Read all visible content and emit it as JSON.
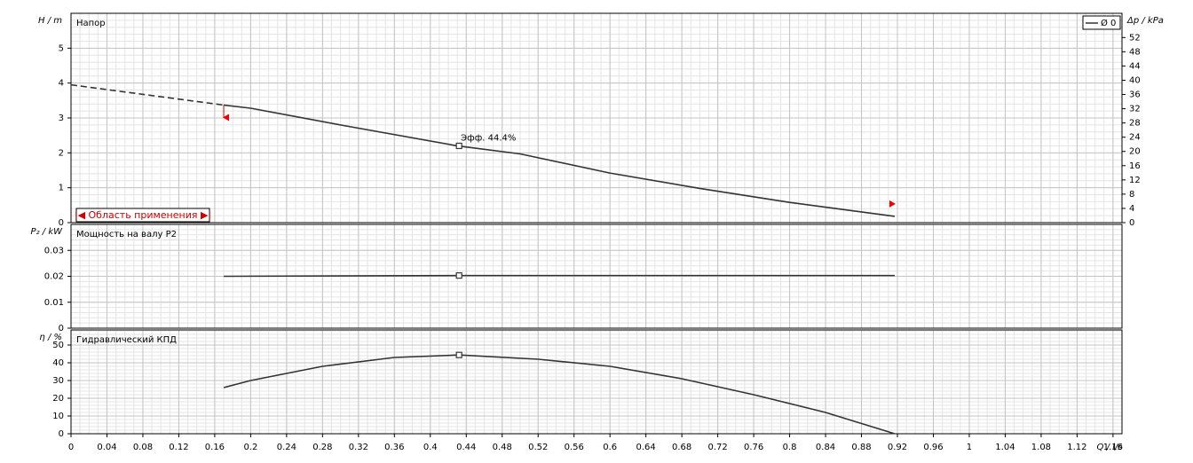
{
  "chart_data": [
    {
      "type": "line",
      "title": "Напор",
      "ylabel": "H / m",
      "y2label": "Δp / kPa",
      "ylim": [
        0,
        6
      ],
      "yticks": [
        0,
        1,
        2,
        3,
        4,
        5
      ],
      "y2lim": [
        0,
        58.8
      ],
      "y2ticks": [
        0,
        4,
        8,
        12,
        16,
        20,
        24,
        28,
        32,
        36,
        40,
        44,
        48,
        52
      ],
      "x": [
        0.17,
        0.2,
        0.3,
        0.43,
        0.5,
        0.6,
        0.7,
        0.8,
        0.917
      ],
      "series": [
        {
          "name": "Ø 0",
          "color": "#333333",
          "values": [
            3.37,
            3.28,
            2.8,
            2.2,
            1.97,
            1.42,
            0.98,
            0.58,
            0.18
          ]
        }
      ],
      "extrapolation": {
        "x": [
          0,
          0.17
        ],
        "values": [
          3.95,
          3.37
        ]
      },
      "marker": {
        "x": 0.432,
        "y": 2.2
      },
      "annotation": "Эфф. 44.4%",
      "operating_range": [
        0.17,
        0.917
      ],
      "range_label": "|◀ Область применения ▶|",
      "grid": true
    },
    {
      "type": "line",
      "title": "Мощность на валу P2",
      "ylabel": "P₂ / kW",
      "ylim": [
        0,
        0.04
      ],
      "yticks": [
        0,
        0.01,
        0.02,
        0.03
      ],
      "x": [
        0.17,
        0.43,
        0.917
      ],
      "series": [
        {
          "color": "#333333",
          "values": [
            0.02,
            0.0203,
            0.0203
          ]
        }
      ],
      "marker": {
        "x": 0.432,
        "y": 0.0203
      },
      "grid": true
    },
    {
      "type": "line",
      "title": "Гидравлический КПД",
      "ylabel": "η / %",
      "xlabel": "Q / l/s",
      "ylim": [
        0,
        58.5
      ],
      "yticks": [
        0,
        10,
        20,
        30,
        40,
        50
      ],
      "xlim": [
        0,
        1.17
      ],
      "xticks": [
        0,
        0.04,
        0.08,
        0.12,
        0.16,
        0.2,
        0.24,
        0.28,
        0.32,
        0.36,
        0.4,
        0.44,
        0.48,
        0.52,
        0.56,
        0.6,
        0.64,
        0.68,
        0.72,
        0.76,
        0.8,
        0.84,
        0.88,
        0.92,
        0.96,
        1,
        1.04,
        1.08,
        1.12,
        1.16
      ],
      "x": [
        0.17,
        0.2,
        0.28,
        0.36,
        0.432,
        0.52,
        0.6,
        0.68,
        0.76,
        0.84,
        0.917
      ],
      "series": [
        {
          "color": "#333333",
          "values": [
            26,
            30,
            38,
            43,
            44.4,
            42,
            38,
            31,
            22,
            12,
            0
          ]
        }
      ],
      "marker": {
        "x": 0.432,
        "y": 44.4
      },
      "grid": true
    }
  ]
}
